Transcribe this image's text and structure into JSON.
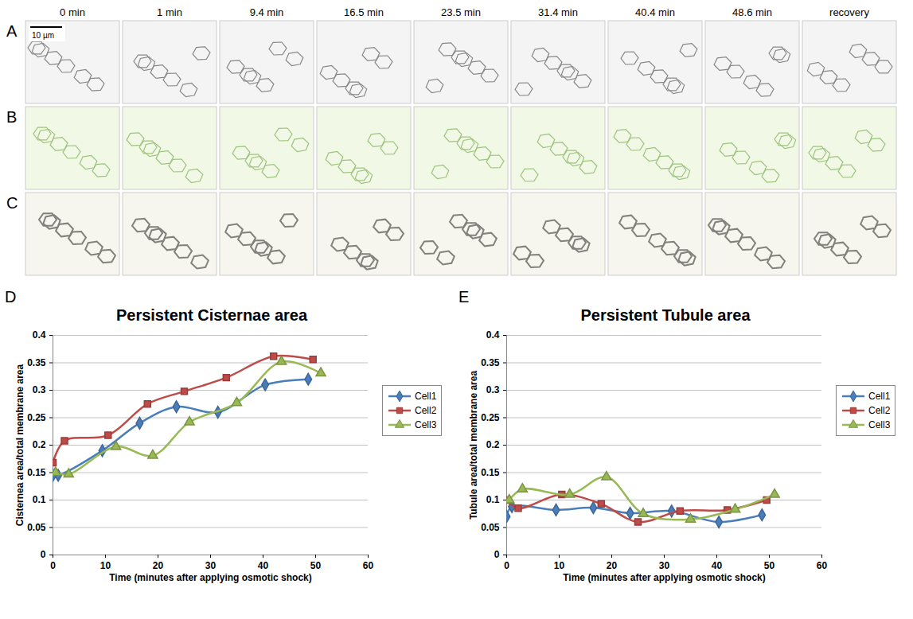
{
  "image_panels": {
    "letters": [
      "A",
      "B",
      "C"
    ],
    "time_labels": [
      "0 min",
      "1 min",
      "9.4 min",
      "16.5 min",
      "23.5 min",
      "31.4 min",
      "40.4 min",
      "48.6 min",
      "recovery"
    ],
    "scale_bar": "10 µm"
  },
  "chart_data": [
    {
      "type": "line",
      "panel_label": "D",
      "title": "Persistent Cisternae area",
      "x_label": "Time (minutes after applying osmotic shock)",
      "y_label": "Cisternea area/total membrane area",
      "xlim": [
        0,
        60
      ],
      "xticks": [
        0,
        10,
        20,
        30,
        40,
        50,
        60
      ],
      "ylim": [
        0,
        0.4
      ],
      "yticks": [
        0,
        0.05,
        0.1,
        0.15,
        0.2,
        0.25,
        0.3,
        0.35,
        0.4
      ],
      "grid": true,
      "legend": "right",
      "series": [
        {
          "name": "Cell1",
          "color": "#4a7ebb",
          "marker": "diamond",
          "line_style": "smooth",
          "x": [
            0,
            1,
            9.4,
            16.5,
            23.5,
            31.4,
            40.4,
            48.6
          ],
          "values": [
            0.145,
            0.145,
            0.19,
            0.24,
            0.27,
            0.26,
            0.31,
            0.32
          ]
        },
        {
          "name": "Cell2",
          "color": "#be4b48",
          "marker": "square",
          "line_style": "smooth",
          "x": [
            0,
            2.2,
            10.5,
            18,
            25,
            33,
            42,
            49.5
          ],
          "values": [
            0.168,
            0.208,
            0.218,
            0.275,
            0.298,
            0.323,
            0.362,
            0.356
          ]
        },
        {
          "name": "Cell3",
          "color": "#98b954",
          "marker": "triangle",
          "line_style": "smooth",
          "x": [
            0.5,
            3,
            12,
            19,
            26,
            35,
            43.5,
            51
          ],
          "values": [
            0.15,
            0.147,
            0.197,
            0.181,
            0.242,
            0.277,
            0.352,
            0.331
          ]
        }
      ]
    },
    {
      "type": "line",
      "panel_label": "E",
      "title": "Persistent Tubule area",
      "x_label": "Time (minutes after applying osmotic shock)",
      "y_label": "Tubule area/total membrane area",
      "xlim": [
        0,
        60
      ],
      "xticks": [
        0,
        10,
        20,
        30,
        40,
        50,
        60
      ],
      "ylim": [
        0,
        0.4
      ],
      "yticks": [
        0,
        0.05,
        0.1,
        0.15,
        0.2,
        0.25,
        0.3,
        0.35,
        0.4
      ],
      "grid": true,
      "legend": "right",
      "series": [
        {
          "name": "Cell1",
          "color": "#4a7ebb",
          "marker": "diamond",
          "line_style": "smooth",
          "x": [
            0,
            1,
            9.4,
            16.5,
            23.5,
            31.4,
            40.4,
            48.6
          ],
          "values": [
            0.07,
            0.088,
            0.082,
            0.086,
            0.076,
            0.08,
            0.06,
            0.073
          ]
        },
        {
          "name": "Cell2",
          "color": "#be4b48",
          "marker": "square",
          "line_style": "smooth",
          "x": [
            0,
            2.2,
            10.5,
            18,
            25,
            33,
            42,
            49.5
          ],
          "values": [
            0.1,
            0.085,
            0.11,
            0.093,
            0.06,
            0.08,
            0.082,
            0.1
          ]
        },
        {
          "name": "Cell3",
          "color": "#98b954",
          "marker": "triangle",
          "line_style": "smooth",
          "x": [
            0.5,
            3,
            12,
            19,
            26,
            35,
            43.5,
            51
          ],
          "values": [
            0.1,
            0.12,
            0.11,
            0.142,
            0.075,
            0.065,
            0.083,
            0.11
          ]
        }
      ]
    }
  ]
}
